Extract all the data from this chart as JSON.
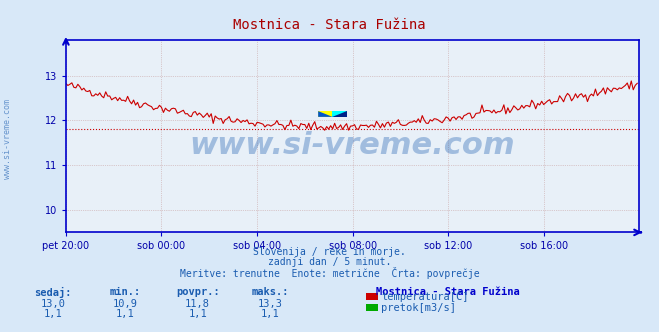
{
  "title": "Mostnica - Stara Fužina",
  "title_color": "#aa0000",
  "bg_color": "#d8e8f8",
  "plot_bg_color": "#e8f0f8",
  "grid_color": "#c8a0a0",
  "axis_color": "#0000cc",
  "tick_color": "#0000aa",
  "ylabel_left": "",
  "xlabel": "",
  "xlim": [
    0,
    288
  ],
  "ylim_temp": [
    9.5,
    13.8
  ],
  "yticks_temp": [
    10,
    11,
    12,
    13
  ],
  "xtick_labels": [
    "pet 20:00",
    "sob 00:00",
    "sob 04:00",
    "sob 08:00",
    "sob 12:00",
    "sob 16:00"
  ],
  "xtick_positions": [
    0,
    48,
    96,
    144,
    192,
    240
  ],
  "avg_temp": 11.8,
  "temp_line_color": "#cc0000",
  "avg_line_color": "#cc0000",
  "avg_line_style": "dotted",
  "watermark": "www.si-vreme.com",
  "watermark_color": "#1a5cb0",
  "watermark_alpha": 0.35,
  "subtitle1": "Slovenija / reke in morje.",
  "subtitle2": "zadnji dan / 5 minut.",
  "subtitle3": "Meritve: trenutne  Enote: metrične  Črta: povprečje",
  "subtitle_color": "#1a5cb0",
  "legend_title": "Mostnica - Stara Fužina",
  "legend_title_color": "#0000cc",
  "legend_items": [
    {
      "label": "temperatura[C]",
      "color": "#cc0000"
    },
    {
      "label": "pretok[m3/s]",
      "color": "#00aa00"
    }
  ],
  "stats_headers": [
    "sedaj:",
    "min.:",
    "povpr.:",
    "maks.:"
  ],
  "stats_temp": [
    13.0,
    10.9,
    11.8,
    13.3
  ],
  "stats_pretok": [
    1.1,
    1.1,
    1.1,
    1.1
  ],
  "stats_color": "#1a5cb0",
  "rotated_label": "www.si-vreme.com",
  "rotated_label_color": "#1a5cb0"
}
